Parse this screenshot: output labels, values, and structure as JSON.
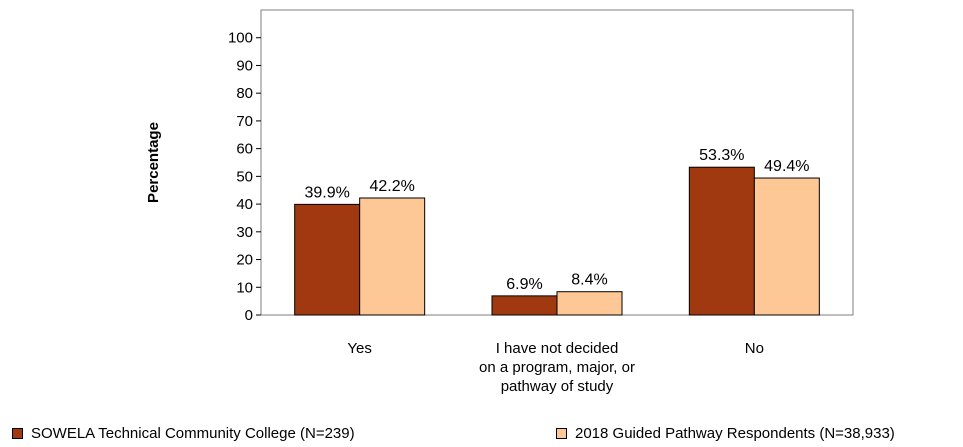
{
  "chart_data": {
    "type": "bar",
    "title": "",
    "ylabel": "Percentage",
    "xlabel": "",
    "ylim": [
      0,
      100
    ],
    "yticks": [
      0,
      10,
      20,
      30,
      40,
      50,
      60,
      70,
      80,
      90,
      100
    ],
    "grid": false,
    "legend_position": "bottom",
    "categories": [
      [
        "Yes"
      ],
      [
        "I have not decided",
        "on a program, major, or",
        "pathway of study"
      ],
      [
        "No"
      ]
    ],
    "series": [
      {
        "name": "SOWELA Technical Community College (N=239)",
        "color": "#a0390f",
        "values": [
          39.9,
          6.9,
          53.3
        ],
        "labels": [
          "39.9%",
          "6.9%",
          "53.3%"
        ]
      },
      {
        "name": "2018 Guided Pathway Respondents (N=38,933)",
        "color": "#fdc896",
        "values": [
          42.2,
          8.4,
          49.4
        ],
        "labels": [
          "42.2%",
          "8.4%",
          "49.4%"
        ]
      }
    ]
  }
}
